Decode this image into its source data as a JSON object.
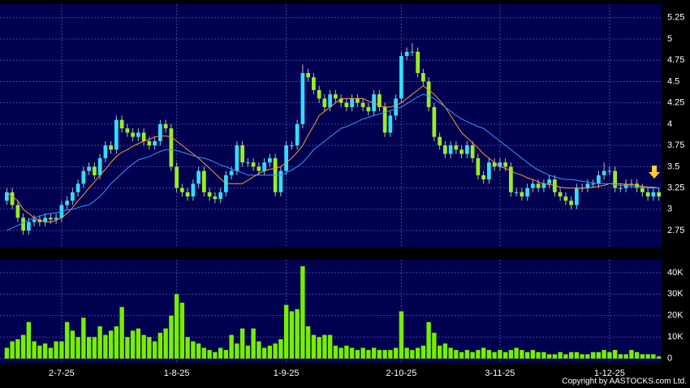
{
  "chart_data": {
    "type": "candlestick",
    "categories": [
      null,
      null,
      null,
      null,
      null,
      null,
      null,
      null,
      null,
      null,
      "2-7-25",
      null,
      null,
      null,
      null,
      null,
      null,
      null,
      null,
      null,
      null,
      null,
      null,
      null,
      null,
      null,
      null,
      null,
      null,
      null,
      null,
      "1-8-25",
      null,
      null,
      null,
      null,
      null,
      null,
      null,
      null,
      null,
      null,
      null,
      null,
      null,
      null,
      null,
      null,
      null,
      null,
      null,
      "1-9-25",
      null,
      null,
      null,
      null,
      null,
      null,
      null,
      null,
      null,
      null,
      null,
      null,
      null,
      null,
      null,
      null,
      null,
      null,
      null,
      null,
      "2-10-25",
      null,
      null,
      null,
      null,
      null,
      null,
      null,
      null,
      null,
      null,
      null,
      null,
      null,
      null,
      null,
      null,
      null,
      "3-11-25",
      null,
      null,
      null,
      null,
      null,
      null,
      null,
      null,
      null,
      null,
      null,
      null,
      null,
      null,
      null,
      null,
      null,
      null,
      null,
      "1-12-25",
      null,
      null,
      null,
      null,
      null,
      null,
      null,
      null,
      null
    ],
    "open": [
      3.1,
      3.2,
      3.05,
      2.9,
      2.75,
      2.85,
      2.88,
      2.85,
      2.9,
      2.88,
      2.9,
      3.05,
      3.1,
      3.2,
      3.3,
      3.45,
      3.5,
      3.4,
      3.6,
      3.75,
      3.7,
      4.05,
      3.95,
      3.9,
      3.85,
      3.9,
      3.8,
      3.75,
      3.8,
      4.0,
      3.95,
      3.5,
      3.25,
      3.2,
      3.15,
      3.3,
      3.45,
      3.2,
      3.15,
      3.12,
      3.2,
      3.4,
      3.45,
      3.75,
      3.55,
      3.55,
      3.5,
      3.45,
      3.55,
      3.6,
      3.2,
      3.45,
      3.75,
      3.75,
      4.0,
      4.6,
      4.55,
      4.4,
      4.3,
      4.2,
      4.35,
      4.3,
      4.25,
      4.2,
      4.3,
      4.25,
      4.2,
      4.15,
      4.35,
      4.2,
      3.9,
      4.1,
      4.3,
      4.8,
      4.85,
      4.85,
      4.6,
      4.5,
      4.2,
      3.85,
      3.75,
      3.65,
      3.75,
      3.7,
      3.65,
      3.75,
      3.6,
      3.4,
      3.35,
      3.55,
      3.5,
      3.55,
      3.5,
      3.2,
      3.2,
      3.15,
      3.25,
      3.3,
      3.25,
      3.3,
      3.35,
      3.2,
      3.15,
      3.1,
      3.05,
      3.25,
      3.25,
      3.3,
      3.3,
      3.4,
      3.45,
      3.45,
      3.25,
      3.25,
      3.3,
      3.3,
      3.25,
      3.2,
      3.15,
      3.2
    ],
    "high": [
      3.25,
      3.25,
      3.1,
      2.95,
      2.9,
      2.93,
      2.93,
      2.95,
      2.95,
      2.95,
      3.1,
      3.15,
      3.25,
      3.35,
      3.5,
      3.55,
      3.55,
      3.65,
      3.8,
      3.8,
      4.1,
      4.1,
      4.0,
      3.95,
      3.95,
      3.95,
      3.85,
      3.85,
      4.05,
      4.05,
      4.0,
      3.55,
      3.3,
      3.25,
      3.35,
      3.5,
      3.5,
      3.25,
      3.2,
      3.25,
      3.45,
      3.5,
      3.8,
      3.8,
      3.6,
      3.6,
      3.55,
      3.6,
      3.65,
      3.65,
      3.5,
      3.8,
      3.8,
      4.05,
      4.7,
      4.65,
      4.6,
      4.45,
      4.35,
      4.4,
      4.4,
      4.35,
      4.3,
      4.35,
      4.35,
      4.3,
      4.25,
      4.4,
      4.4,
      4.25,
      4.15,
      4.35,
      4.85,
      4.9,
      4.95,
      4.9,
      4.65,
      4.55,
      4.25,
      3.9,
      3.8,
      3.8,
      3.8,
      3.75,
      3.8,
      3.8,
      3.65,
      3.45,
      3.6,
      3.6,
      3.6,
      3.6,
      3.55,
      3.25,
      3.25,
      3.3,
      3.35,
      3.35,
      3.35,
      3.4,
      3.4,
      3.25,
      3.2,
      3.15,
      3.3,
      3.3,
      3.35,
      3.35,
      3.45,
      3.55,
      3.5,
      3.5,
      3.3,
      3.35,
      3.35,
      3.35,
      3.3,
      3.25,
      3.25,
      3.25
    ],
    "low": [
      3.05,
      3.0,
      2.85,
      2.7,
      2.7,
      2.8,
      2.8,
      2.8,
      2.83,
      2.83,
      2.85,
      3.0,
      3.05,
      3.15,
      3.25,
      3.4,
      3.35,
      3.35,
      3.55,
      3.65,
      3.65,
      3.9,
      3.85,
      3.8,
      3.8,
      3.75,
      3.7,
      3.7,
      3.75,
      3.9,
      3.45,
      3.2,
      3.15,
      3.1,
      3.1,
      3.25,
      3.15,
      3.1,
      3.07,
      3.07,
      3.15,
      3.35,
      3.4,
      3.5,
      3.5,
      3.45,
      3.4,
      3.4,
      3.5,
      3.15,
      3.15,
      3.4,
      3.7,
      3.7,
      3.95,
      4.5,
      4.35,
      4.25,
      4.15,
      4.15,
      4.25,
      4.2,
      4.15,
      4.15,
      4.2,
      4.15,
      4.1,
      4.1,
      4.15,
      3.85,
      3.85,
      4.05,
      4.25,
      4.75,
      4.8,
      4.55,
      4.45,
      4.15,
      3.8,
      3.7,
      3.6,
      3.6,
      3.65,
      3.6,
      3.6,
      3.55,
      3.35,
      3.3,
      3.3,
      3.45,
      3.45,
      3.45,
      3.15,
      3.15,
      3.1,
      3.1,
      3.2,
      3.2,
      3.2,
      3.25,
      3.15,
      3.1,
      3.05,
      3.0,
      3.0,
      3.2,
      3.2,
      3.25,
      3.25,
      3.35,
      3.4,
      3.2,
      3.2,
      3.2,
      3.25,
      3.2,
      3.15,
      3.1,
      3.1,
      3.1
    ],
    "close": [
      3.2,
      3.05,
      2.9,
      2.75,
      2.85,
      2.88,
      2.85,
      2.9,
      2.88,
      2.9,
      3.05,
      3.1,
      3.2,
      3.3,
      3.45,
      3.5,
      3.4,
      3.6,
      3.75,
      3.7,
      4.05,
      3.95,
      3.9,
      3.85,
      3.9,
      3.8,
      3.75,
      3.8,
      4.0,
      3.95,
      3.5,
      3.25,
      3.2,
      3.15,
      3.3,
      3.45,
      3.2,
      3.15,
      3.12,
      3.2,
      3.4,
      3.45,
      3.75,
      3.55,
      3.55,
      3.5,
      3.45,
      3.55,
      3.6,
      3.2,
      3.45,
      3.75,
      3.75,
      4.0,
      4.6,
      4.55,
      4.4,
      4.3,
      4.2,
      4.35,
      4.3,
      4.25,
      4.2,
      4.3,
      4.25,
      4.2,
      4.15,
      4.35,
      4.2,
      3.9,
      4.1,
      4.3,
      4.8,
      4.85,
      4.85,
      4.6,
      4.5,
      4.2,
      3.85,
      3.75,
      3.65,
      3.75,
      3.7,
      3.65,
      3.75,
      3.6,
      3.4,
      3.35,
      3.55,
      3.5,
      3.55,
      3.5,
      3.2,
      3.2,
      3.15,
      3.25,
      3.3,
      3.25,
      3.3,
      3.35,
      3.2,
      3.15,
      3.1,
      3.05,
      3.25,
      3.25,
      3.3,
      3.3,
      3.4,
      3.45,
      3.45,
      3.25,
      3.25,
      3.3,
      3.3,
      3.25,
      3.2,
      3.15,
      3.2,
      3.15
    ],
    "up_color": "#33ddff",
    "down_color": "#99ee22",
    "series": [
      {
        "color": "#ff9933",
        "values": [
          3.2,
          3.15,
          3.1,
          3.0,
          2.95,
          2.9,
          2.87,
          2.85,
          2.85,
          2.87,
          2.9,
          2.95,
          3.02,
          3.1,
          3.17,
          3.25,
          3.32,
          3.4,
          3.47,
          3.55,
          3.62,
          3.67,
          3.7,
          3.74,
          3.77,
          3.8,
          3.82,
          3.85,
          3.86,
          3.86,
          3.85,
          3.8,
          3.75,
          3.7,
          3.65,
          3.6,
          3.54,
          3.48,
          3.42,
          3.36,
          3.3,
          3.3,
          3.3,
          3.3,
          3.34,
          3.38,
          3.42,
          3.45,
          3.47,
          3.48,
          3.5,
          3.55,
          3.6,
          3.67,
          3.75,
          3.87,
          3.98,
          4.1,
          4.15,
          4.2,
          4.25,
          4.3,
          4.3,
          4.3,
          4.3,
          4.3,
          4.27,
          4.25,
          4.22,
          4.2,
          4.2,
          4.22,
          4.25,
          4.3,
          4.35,
          4.4,
          4.45,
          4.4,
          4.35,
          4.28,
          4.2,
          4.1,
          4.0,
          3.9,
          3.84,
          3.78,
          3.72,
          3.65,
          3.6,
          3.55,
          3.5,
          3.48,
          3.45,
          3.42,
          3.4,
          3.37,
          3.35,
          3.32,
          3.3,
          3.29,
          3.28,
          3.26,
          3.25,
          3.25,
          3.25,
          3.25,
          3.25,
          3.26,
          3.27,
          3.28,
          3.3,
          3.3,
          3.3,
          3.29,
          3.29,
          3.28,
          3.27,
          3.26,
          3.26,
          3.25
        ]
      },
      {
        "color": "#3399ff",
        "values": [
          2.75,
          2.78,
          2.81,
          2.84,
          2.87,
          2.9,
          2.92,
          2.94,
          2.95,
          2.96,
          2.97,
          2.99,
          3.0,
          3.02,
          3.04,
          3.05,
          3.1,
          3.15,
          3.22,
          3.3,
          3.36,
          3.42,
          3.48,
          3.53,
          3.58,
          3.6,
          3.62,
          3.65,
          3.68,
          3.7,
          3.7,
          3.69,
          3.67,
          3.65,
          3.63,
          3.61,
          3.6,
          3.58,
          3.55,
          3.52,
          3.5,
          3.47,
          3.45,
          3.43,
          3.4,
          3.4,
          3.4,
          3.4,
          3.4,
          3.4,
          3.4,
          3.43,
          3.46,
          3.5,
          3.55,
          3.62,
          3.7,
          3.75,
          3.8,
          3.85,
          3.9,
          3.95,
          3.97,
          4.0,
          4.03,
          4.06,
          4.08,
          4.1,
          4.12,
          4.14,
          4.16,
          4.18,
          4.2,
          4.24,
          4.28,
          4.32,
          4.35,
          4.33,
          4.3,
          4.25,
          4.2,
          4.15,
          4.1,
          4.06,
          4.03,
          4.0,
          3.97,
          3.95,
          3.9,
          3.85,
          3.8,
          3.75,
          3.7,
          3.65,
          3.6,
          3.55,
          3.5,
          3.46,
          3.43,
          3.4,
          3.38,
          3.36,
          3.35,
          3.35,
          3.34,
          3.33,
          3.32,
          3.31,
          3.3,
          3.3,
          3.3,
          3.29,
          3.28,
          3.28,
          3.27,
          3.26,
          3.26,
          3.25,
          3.25,
          3.25
        ]
      }
    ],
    "ylim": [
      2.55,
      5.41
    ],
    "yticks": [
      2.75,
      3,
      3.25,
      3.5,
      3.75,
      4,
      4.25,
      4.5,
      4.75,
      5,
      5.25
    ],
    "grid": true,
    "volume": {
      "color": "#77ee00",
      "values": [
        5000,
        8000,
        9000,
        11000,
        17000,
        8000,
        6000,
        7000,
        5000,
        8000,
        8000,
        17000,
        13000,
        10000,
        19000,
        10000,
        10000,
        15000,
        11000,
        13000,
        15000,
        24000,
        10000,
        13000,
        14000,
        11000,
        10000,
        8000,
        12000,
        14000,
        20000,
        30000,
        26000,
        10000,
        8000,
        7000,
        5000,
        4000,
        3000,
        5000,
        4000,
        11000,
        7000,
        14000,
        6000,
        14000,
        8000,
        5000,
        6000,
        7000,
        9000,
        25000,
        22000,
        23000,
        43000,
        15000,
        11000,
        10000,
        11000,
        11000,
        6000,
        5000,
        6000,
        5000,
        4000,
        5000,
        4000,
        5000,
        4000,
        4000,
        4000,
        5000,
        22000,
        5000,
        4000,
        5000,
        6000,
        17000,
        12000,
        6000,
        7000,
        5000,
        4000,
        3000,
        4000,
        3000,
        4000,
        5000,
        4000,
        3000,
        4000,
        3000,
        4000,
        5000,
        4000,
        3000,
        4000,
        3000,
        3000,
        2000,
        2000,
        3000,
        2000,
        3000,
        3000,
        2000,
        2000,
        3000,
        3000,
        4000,
        3000,
        4000,
        2000,
        2000,
        4000,
        3000,
        2000,
        2000,
        2000,
        1000
      ],
      "ylim": [
        -2000,
        46000
      ],
      "yticks": [
        0,
        {
          "value": 10000,
          "label": "10K"
        },
        {
          "value": 20000,
          "label": "20K"
        },
        {
          "value": 30000,
          "label": "30K"
        },
        {
          "value": 40000,
          "label": "40K"
        }
      ]
    },
    "source": "Copyright by AASTOCKS.com Ltd."
  }
}
